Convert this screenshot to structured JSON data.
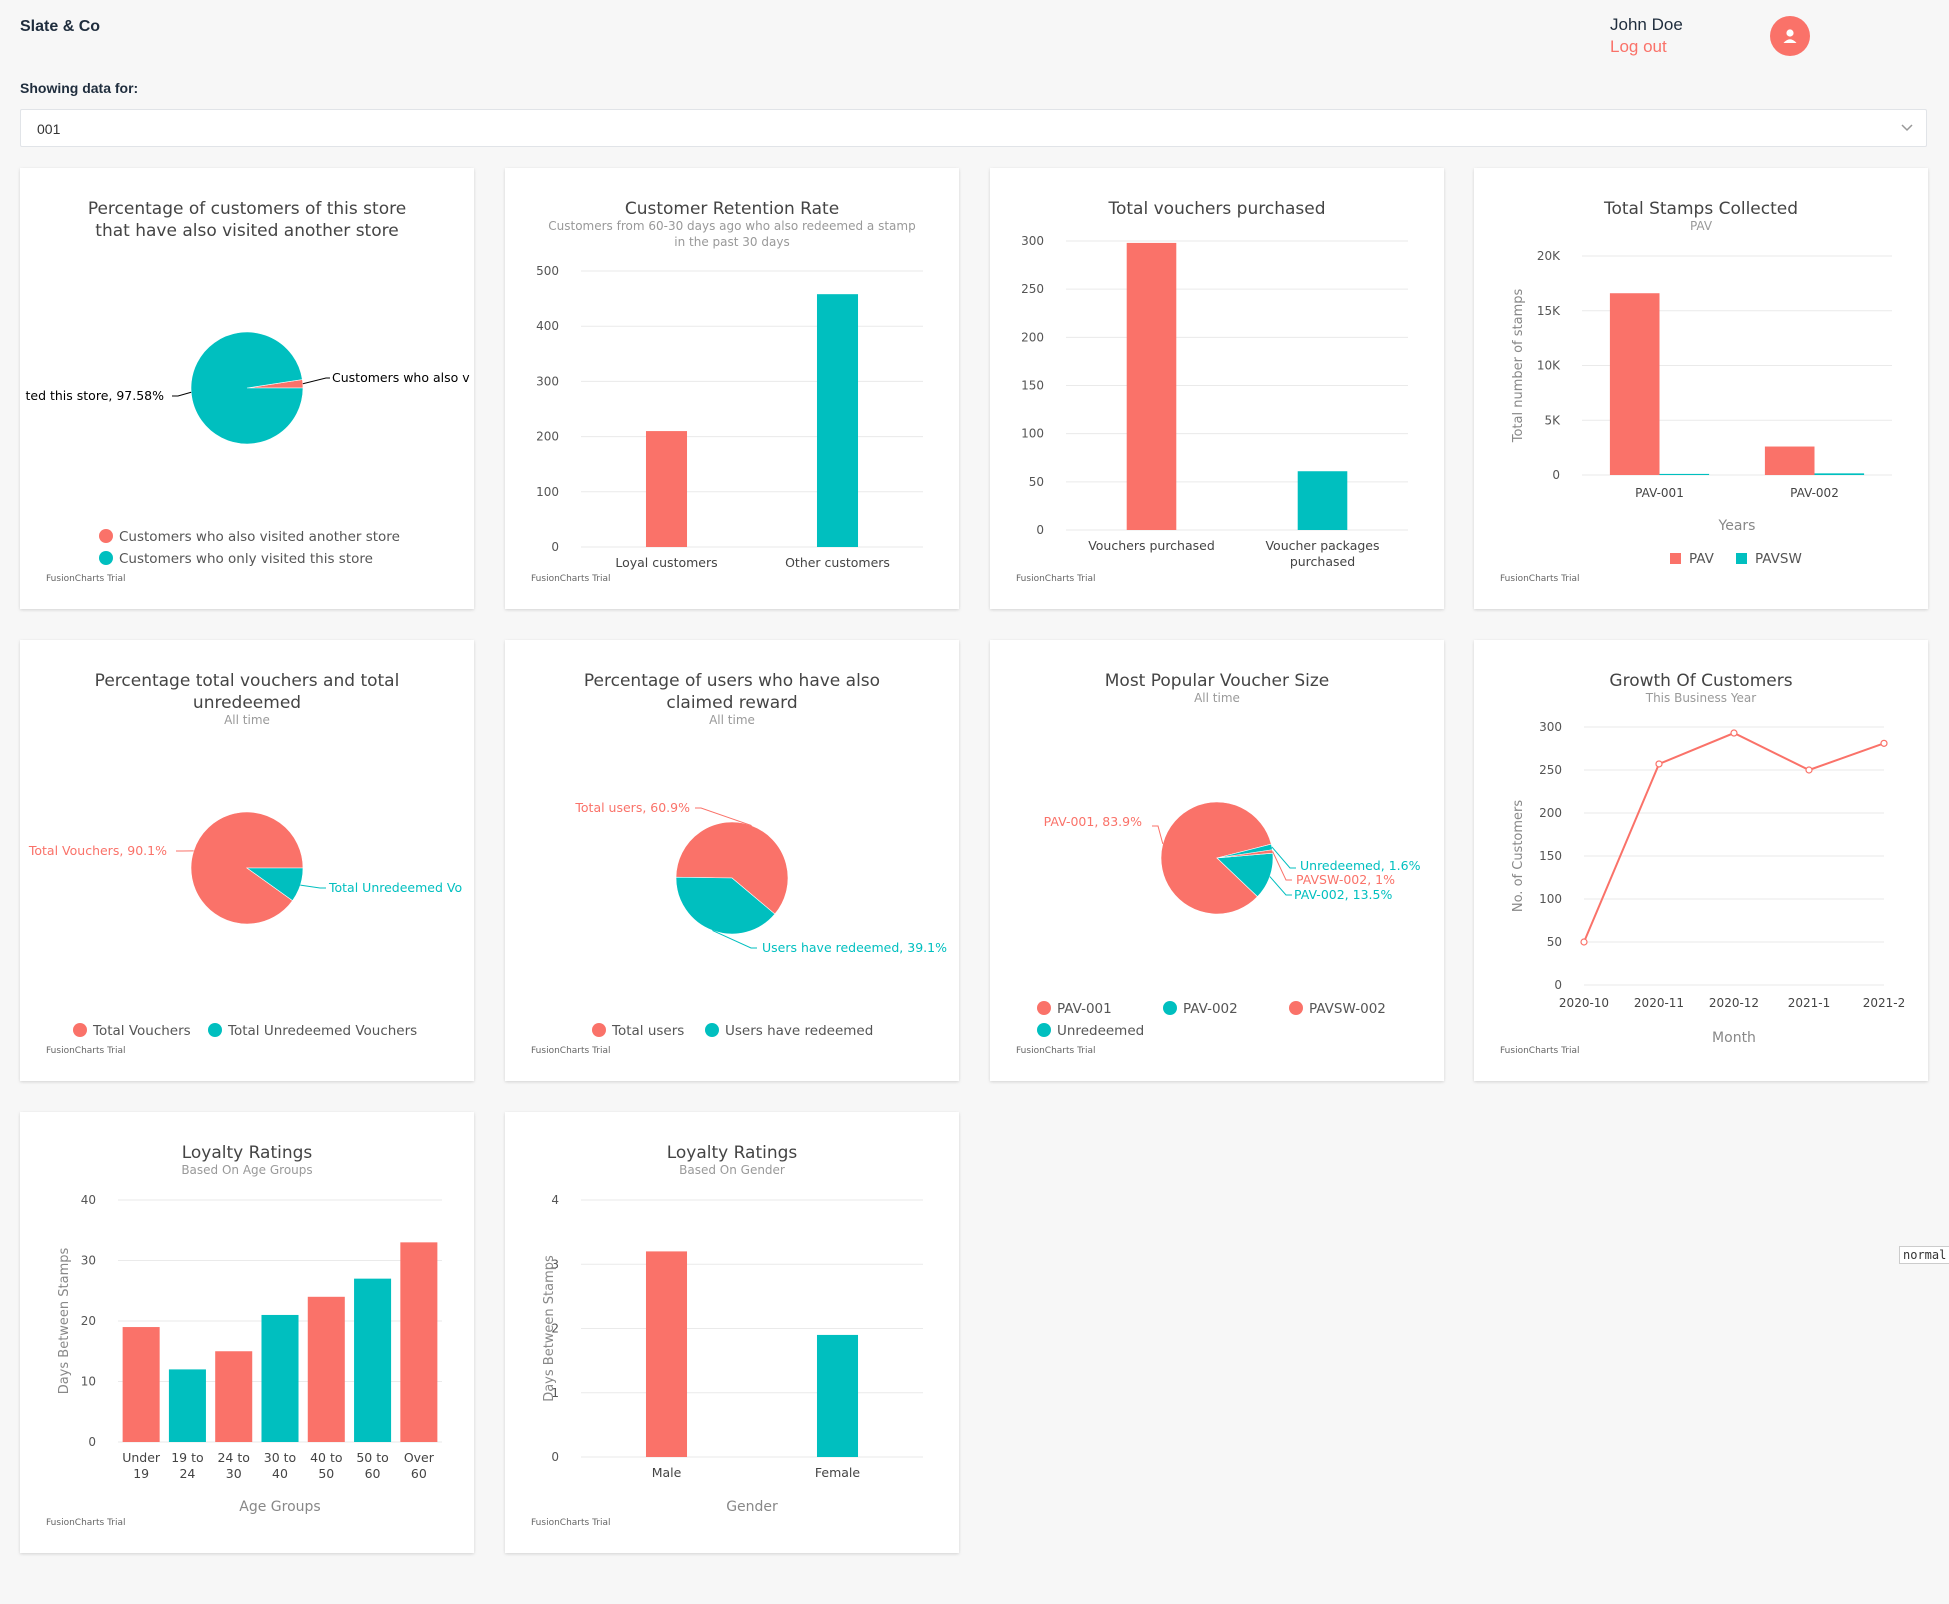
{
  "app": {
    "brand": "Slate & Co"
  },
  "user": {
    "name": "John Doe",
    "logout_label": "Log out"
  },
  "filter": {
    "label": "Showing data for:",
    "value": "001"
  },
  "watermark": "FusionCharts Trial",
  "debug_tag": "normal",
  "colors": {
    "coral": "#fa7269",
    "teal": "#00bfbf"
  },
  "chart_data": [
    {
      "id": "pie-other-store",
      "type": "pie",
      "title": "Percentage of customers of this store that have also visited another store",
      "subtitle": "",
      "slices": [
        {
          "name": "Customers who also visited another store",
          "value": 2.42,
          "color": "#fa7269",
          "label": "Customers who also v"
        },
        {
          "name": "Customers who only visited this store",
          "value": 97.58,
          "color": "#00bfbf",
          "label": "ted this store, 97.58%"
        }
      ],
      "legend": [
        "Customers who also visited another store",
        "Customers who only visited this store"
      ],
      "legend_placement": "bottom"
    },
    {
      "id": "bar-retention",
      "type": "bar",
      "title": "Customer Retention Rate",
      "subtitle": "Customers from 60-30 days ago who also redeemed a stamp in the past 30 days",
      "categories": [
        "Loyal customers",
        "Other customers"
      ],
      "values": [
        210,
        458
      ],
      "colors": [
        "#fa7269",
        "#00bfbf"
      ],
      "ylim": [
        0,
        500
      ],
      "yticks": [
        "0",
        "100",
        "200",
        "300",
        "400",
        "500"
      ],
      "xlabel": "",
      "ylabel": ""
    },
    {
      "id": "bar-vouchers",
      "type": "bar",
      "title": "Total vouchers purchased",
      "subtitle": "",
      "categories": [
        "Vouchers purchased",
        "Voucher packages purchased"
      ],
      "values": [
        298,
        61
      ],
      "colors": [
        "#fa7269",
        "#00bfbf"
      ],
      "ylim": [
        0,
        300
      ],
      "yticks": [
        "0",
        "50",
        "100",
        "150",
        "200",
        "250",
        "300"
      ],
      "xlabel": "",
      "ylabel": ""
    },
    {
      "id": "bar-stamps",
      "type": "bar",
      "title": "Total Stamps Collected",
      "subtitle": "PAV",
      "categories": [
        "PAV-001",
        "PAV-002"
      ],
      "series": [
        {
          "name": "PAV",
          "values": [
            16600,
            2600
          ],
          "color": "#fa7269"
        },
        {
          "name": "PAVSW",
          "values": [
            100,
            150
          ],
          "color": "#00bfbf"
        }
      ],
      "ylim": [
        0,
        20000
      ],
      "yticks": [
        "0",
        "5K",
        "10K",
        "15K",
        "20K"
      ],
      "xlabel": "Years",
      "ylabel": "Total number of stamps",
      "legend_placement": "bottom"
    },
    {
      "id": "pie-vouchers",
      "type": "pie",
      "title": "Percentage total vouchers and total unredeemed",
      "subtitle": "All time",
      "slices": [
        {
          "name": "Total Vouchers",
          "value": 90.1,
          "color": "#fa7269",
          "label": "Total Vouchers, 90.1%"
        },
        {
          "name": "Total Unredeemed Vouchers",
          "value": 9.9,
          "color": "#00bfbf",
          "label": "Total Unredeemed Vo"
        }
      ],
      "legend": [
        "Total Vouchers",
        "Total Unredeemed Vouchers"
      ],
      "legend_placement": "bottom"
    },
    {
      "id": "pie-claimed",
      "type": "pie",
      "title": "Percentage of users who have also claimed reward",
      "subtitle": "All time",
      "slices": [
        {
          "name": "Total users",
          "value": 60.9,
          "color": "#fa7269",
          "label": "Total users, 60.9%"
        },
        {
          "name": "Users have redeemed",
          "value": 39.1,
          "color": "#00bfbf",
          "label": "Users have redeemed, 39.1%"
        }
      ],
      "legend": [
        "Total users",
        "Users have redeemed"
      ],
      "legend_placement": "bottom"
    },
    {
      "id": "pie-voucher-size",
      "type": "pie",
      "title": "Most Popular Voucher Size",
      "subtitle": "All time",
      "slices": [
        {
          "name": "PAV-001",
          "value": 83.9,
          "color": "#fa7269",
          "label": "PAV-001, 83.9%"
        },
        {
          "name": "PAV-002",
          "value": 13.5,
          "color": "#00bfbf",
          "label": "PAV-002, 13.5%"
        },
        {
          "name": "PAVSW-002",
          "value": 1,
          "color": "#fa7269",
          "label": "PAVSW-002, 1%"
        },
        {
          "name": "Unredeemed",
          "value": 1.6,
          "color": "#00bfbf",
          "label": "Unredeemed, 1.6%"
        }
      ],
      "legend": [
        "PAV-001",
        "PAV-002",
        "PAVSW-002",
        "Unredeemed"
      ],
      "legend_placement": "bottom"
    },
    {
      "id": "line-growth",
      "type": "line",
      "title": "Growth Of Customers",
      "subtitle": "This Business Year",
      "categories": [
        "2020-10",
        "2020-11",
        "2020-12",
        "2021-1",
        "2021-2"
      ],
      "values": [
        50,
        257,
        293,
        250,
        281
      ],
      "color": "#fa7269",
      "ylim": [
        0,
        300
      ],
      "yticks": [
        "0",
        "50",
        "100",
        "150",
        "200",
        "250",
        "300"
      ],
      "xlabel": "Month",
      "ylabel": "No. of Customers"
    },
    {
      "id": "bar-age",
      "type": "bar",
      "title": "Loyalty Ratings",
      "subtitle": "Based On Age Groups",
      "categories": [
        [
          "Under",
          "19"
        ],
        [
          "19 to",
          "24"
        ],
        [
          "24 to",
          "30"
        ],
        [
          "30 to",
          "40"
        ],
        [
          "40 to",
          "50"
        ],
        [
          "50 to",
          "60"
        ],
        [
          "Over",
          "60"
        ]
      ],
      "values": [
        19,
        12,
        15,
        21,
        24,
        27,
        33
      ],
      "colors": [
        "#fa7269",
        "#00bfbf",
        "#fa7269",
        "#00bfbf",
        "#fa7269",
        "#00bfbf",
        "#fa7269"
      ],
      "ylim": [
        0,
        40
      ],
      "yticks": [
        "0",
        "10",
        "20",
        "30",
        "40"
      ],
      "xlabel": "Age Groups",
      "ylabel": "Days Between Stamps"
    },
    {
      "id": "bar-gender",
      "type": "bar",
      "title": "Loyalty Ratings",
      "subtitle": "Based On Gender",
      "categories": [
        "Male",
        "Female"
      ],
      "values": [
        3.2,
        1.9
      ],
      "colors": [
        "#fa7269",
        "#00bfbf"
      ],
      "ylim": [
        0,
        4
      ],
      "yticks": [
        "0",
        "1",
        "2",
        "3",
        "4"
      ],
      "xlabel": "Gender",
      "ylabel": "Days Between Stamps"
    }
  ]
}
